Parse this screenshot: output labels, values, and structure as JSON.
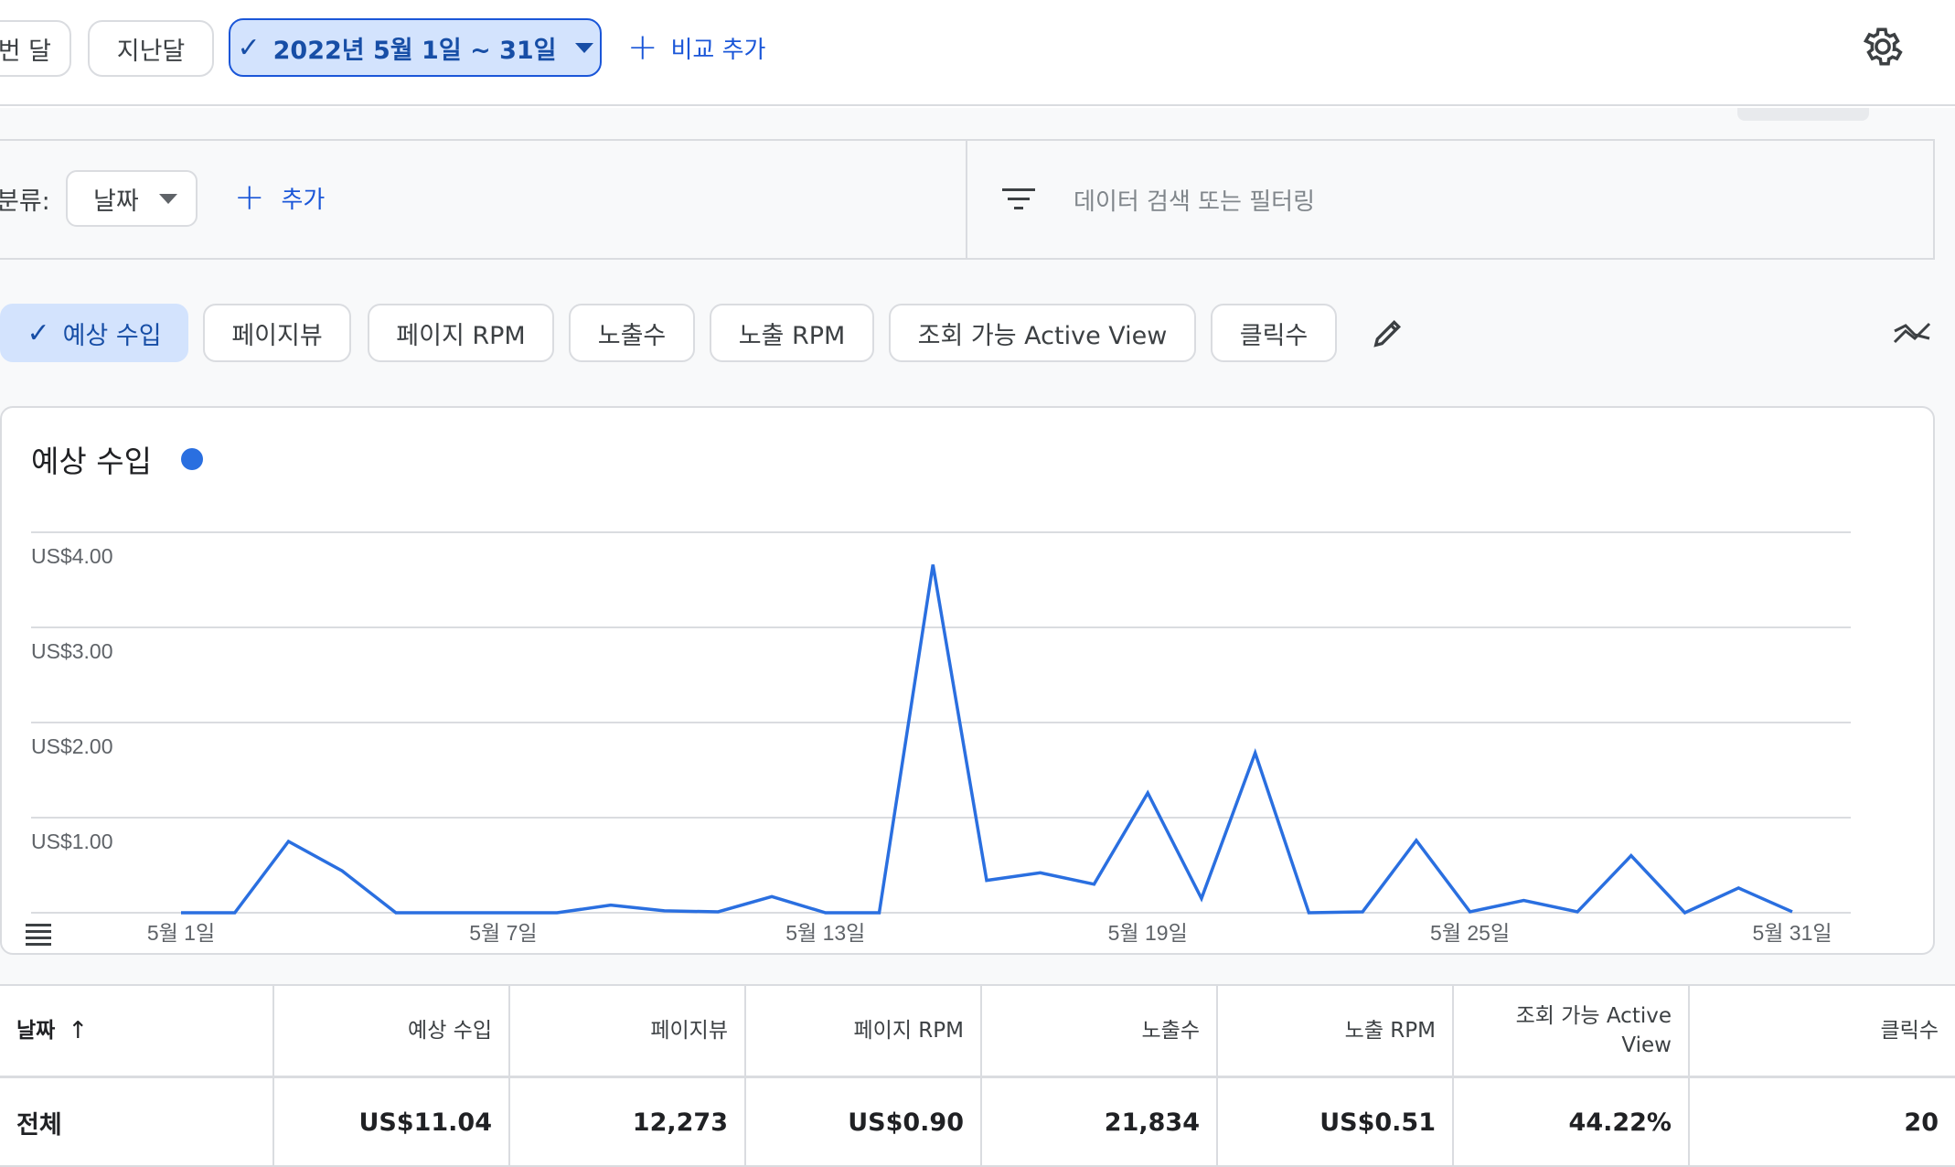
{
  "date_bar": {
    "this_month_label": "이번 달",
    "last_month_label": "지난달",
    "range_label": "2022년 5월 1일 ~ 31일",
    "add_compare_label": "비교 추가"
  },
  "dimension": {
    "label": "분류:",
    "selected": "날짜",
    "add_label": "추가",
    "filter_placeholder": "데이터 검색 또는 필터링"
  },
  "metric_chips": [
    {
      "label": "예상 수입",
      "selected": true
    },
    {
      "label": "페이지뷰",
      "selected": false
    },
    {
      "label": "페이지 RPM",
      "selected": false
    },
    {
      "label": "노출수",
      "selected": false
    },
    {
      "label": "노출 RPM",
      "selected": false
    },
    {
      "label": "조회 가능 Active View",
      "selected": false
    },
    {
      "label": "클릭수",
      "selected": false
    }
  ],
  "colors": {
    "accent": "#1a56d8",
    "series": "#2a6fe0",
    "selected_bg": "#d3e3fd"
  },
  "chart_data": {
    "type": "line",
    "title": "예상 수입",
    "xlabel": "",
    "ylabel": "",
    "x": [
      "5월 1일",
      "5월 2일",
      "5월 3일",
      "5월 4일",
      "5월 5일",
      "5월 6일",
      "5월 7일",
      "5월 8일",
      "5월 9일",
      "5월 10일",
      "5월 11일",
      "5월 12일",
      "5월 13일",
      "5월 14일",
      "5월 15일",
      "5월 16일",
      "5월 17일",
      "5월 18일",
      "5월 19일",
      "5월 20일",
      "5월 21일",
      "5月 22일",
      "5월 23일",
      "5월 24일",
      "5월 25일",
      "5월 26일",
      "5월 27일",
      "5월 28일",
      "5월 29일",
      "5월 30일",
      "5월 31일"
    ],
    "x_tick_labels": [
      "5월 1일",
      "5월 7일",
      "5월 13일",
      "5월 19일",
      "5월 25일",
      "5월 31일"
    ],
    "x_tick_indices": [
      0,
      6,
      12,
      18,
      24,
      30
    ],
    "series": [
      {
        "name": "예상 수입",
        "values": [
          0.0,
          0.0,
          0.75,
          0.44,
          0.0,
          0.0,
          0.0,
          0.0,
          0.08,
          0.02,
          0.01,
          0.17,
          0.0,
          0.0,
          3.66,
          0.34,
          0.42,
          0.3,
          1.26,
          0.15,
          1.68,
          0.0,
          0.01,
          0.76,
          0.01,
          0.13,
          0.01,
          0.6,
          0.0,
          0.26,
          0.01
        ]
      }
    ],
    "y_tick_labels": [
      "US$1.00",
      "US$2.00",
      "US$3.00",
      "US$4.00"
    ],
    "y_ticks": [
      1,
      2,
      3,
      4
    ],
    "ylim": [
      0,
      4
    ],
    "grid": true,
    "legend": "top-left"
  },
  "table": {
    "headers": [
      "날짜",
      "예상 수입",
      "페이지뷰",
      "페이지 RPM",
      "노출수",
      "노출 RPM",
      "조회 가능 Active View",
      "클릭수"
    ],
    "total_row": [
      "전체",
      "US$11.04",
      "12,273",
      "US$0.90",
      "21,834",
      "US$0.51",
      "44.22%",
      "20"
    ]
  }
}
